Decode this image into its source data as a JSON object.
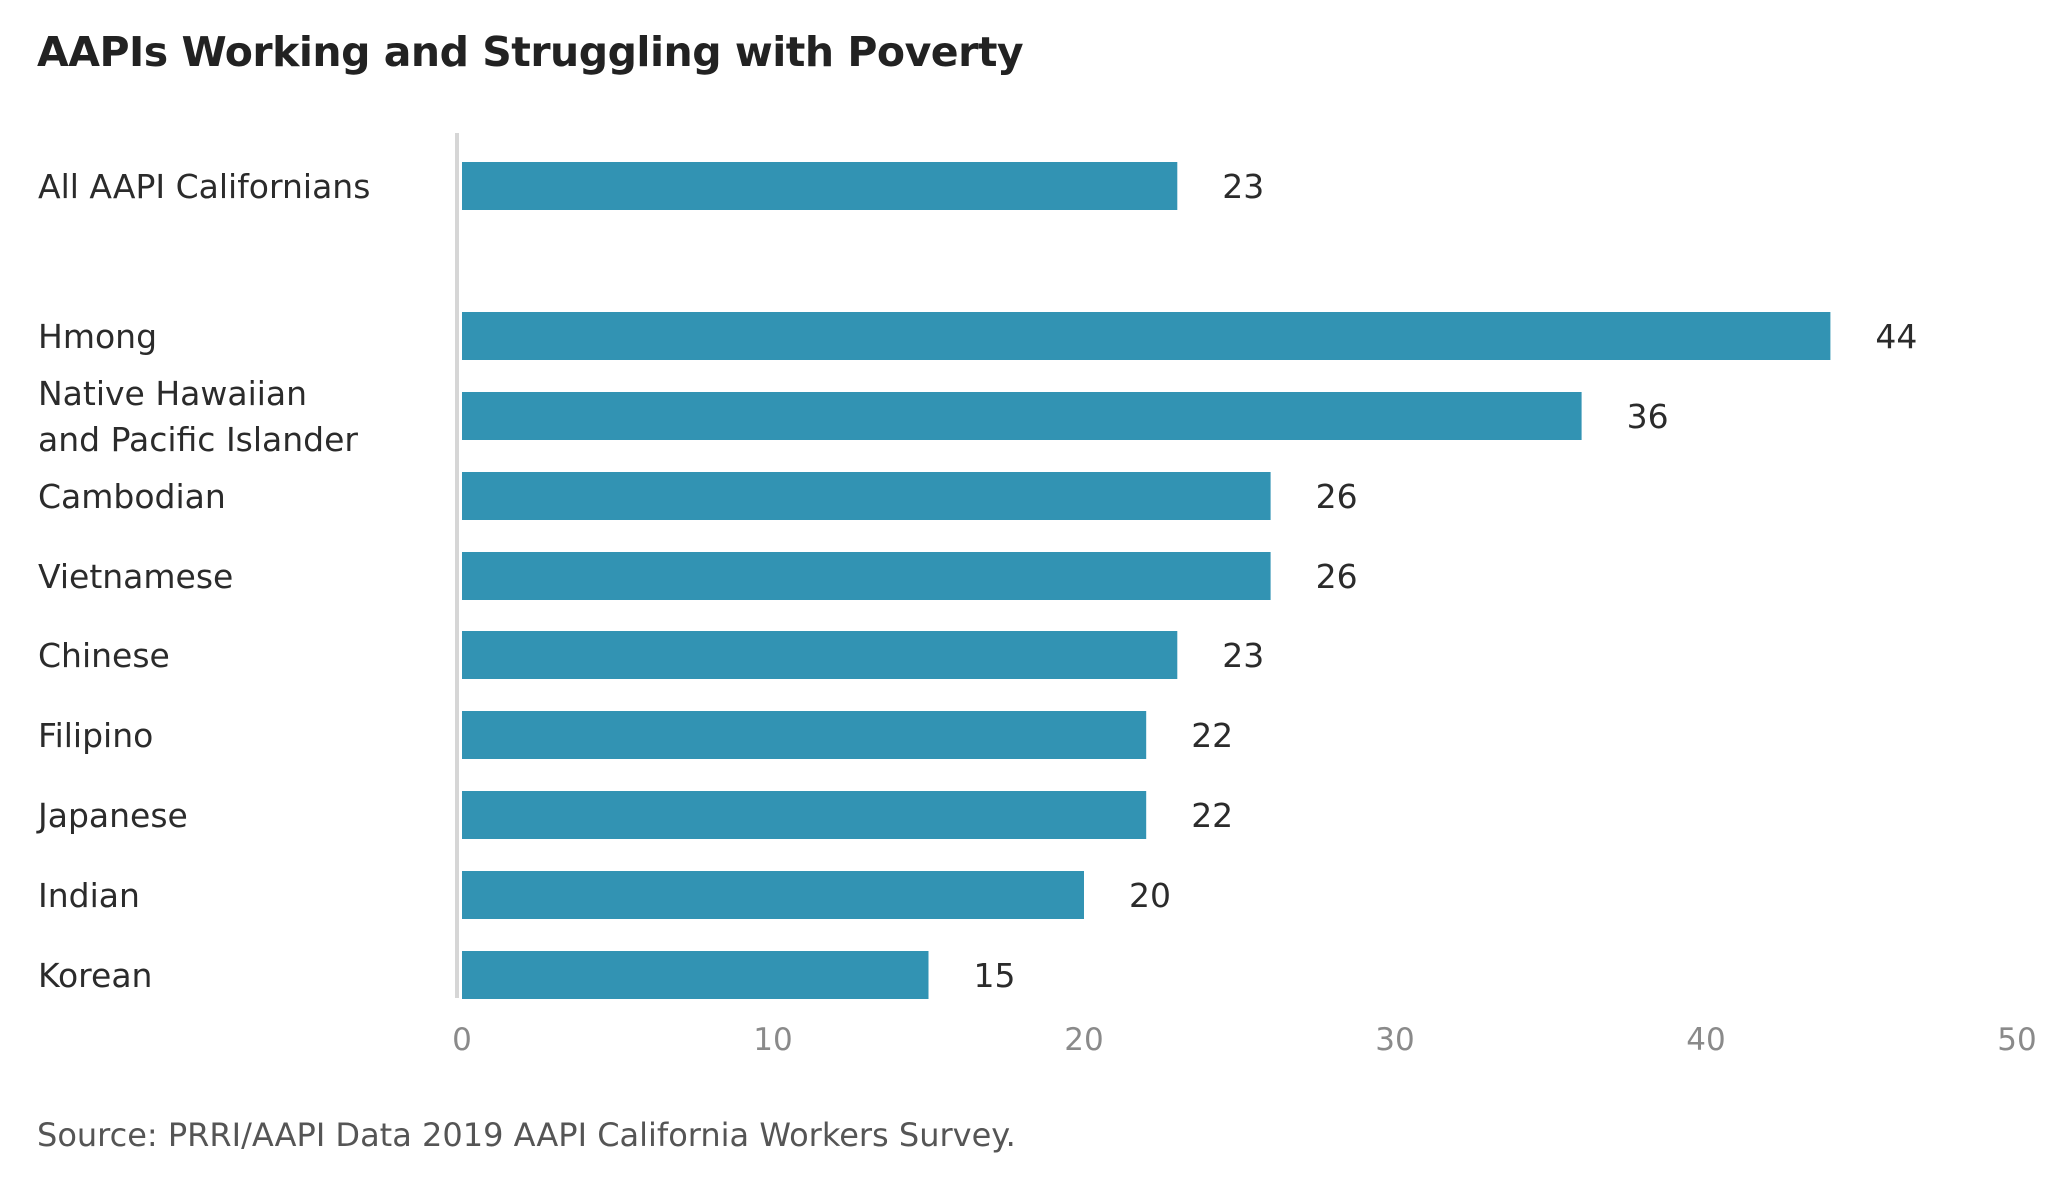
{
  "chart_data": {
    "type": "bar",
    "orientation": "horizontal",
    "title": "AAPIs Working and Struggling with Poverty",
    "source": "Source: PRRI/AAPI Data 2019 AAPI California Workers Survey.",
    "xlabel": "",
    "ylabel": "",
    "xlim": [
      0,
      50
    ],
    "ticks": [
      "0",
      "10",
      "20",
      "30",
      "40",
      "50"
    ],
    "grid": false,
    "legend": "none",
    "bar_color": "#3293b3",
    "axis_color": "#d6d6d6",
    "categories": [
      [
        "All AAPI Californians"
      ],
      [
        "Hmong"
      ],
      [
        "Native Hawaiian",
        "and Pacific Islander"
      ],
      [
        "Cambodian"
      ],
      [
        "Vietnamese"
      ],
      [
        "Chinese"
      ],
      [
        "Filipino"
      ],
      [
        "Japanese"
      ],
      [
        "Indian"
      ],
      [
        "Korean"
      ]
    ],
    "values": [
      23,
      44,
      36,
      26,
      26,
      23,
      22,
      22,
      20,
      15
    ]
  }
}
